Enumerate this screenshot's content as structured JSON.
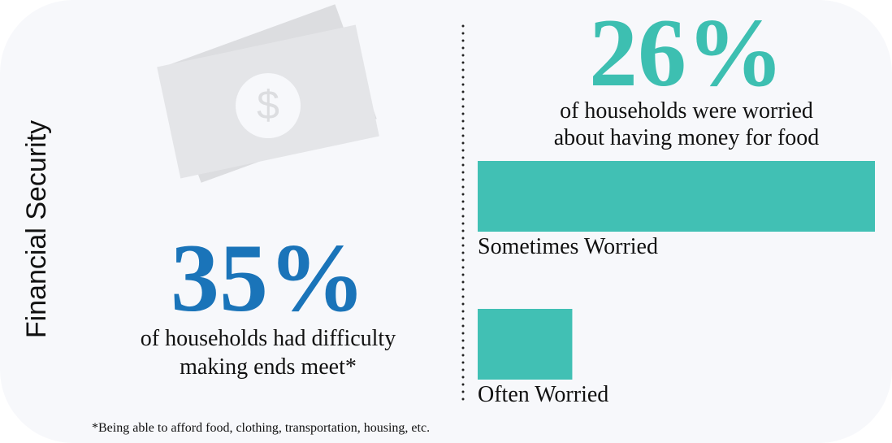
{
  "side_title": "Financial Security",
  "left_stat": {
    "figure": "35%",
    "lines": [
      "of households had difficulty",
      "making ends meet*"
    ]
  },
  "right_stat": {
    "figure": "26%",
    "lines": [
      "of households were worried",
      "about having money for food"
    ]
  },
  "footnote": "*Being able to afford food, clothing, transportation, housing, etc.",
  "chart_data": {
    "type": "bar",
    "orientation": "horizontal",
    "categories": [
      "Sometimes Worried",
      "Often Worried"
    ],
    "values": [
      21,
      5
    ],
    "color": "#41c0b4"
  }
}
